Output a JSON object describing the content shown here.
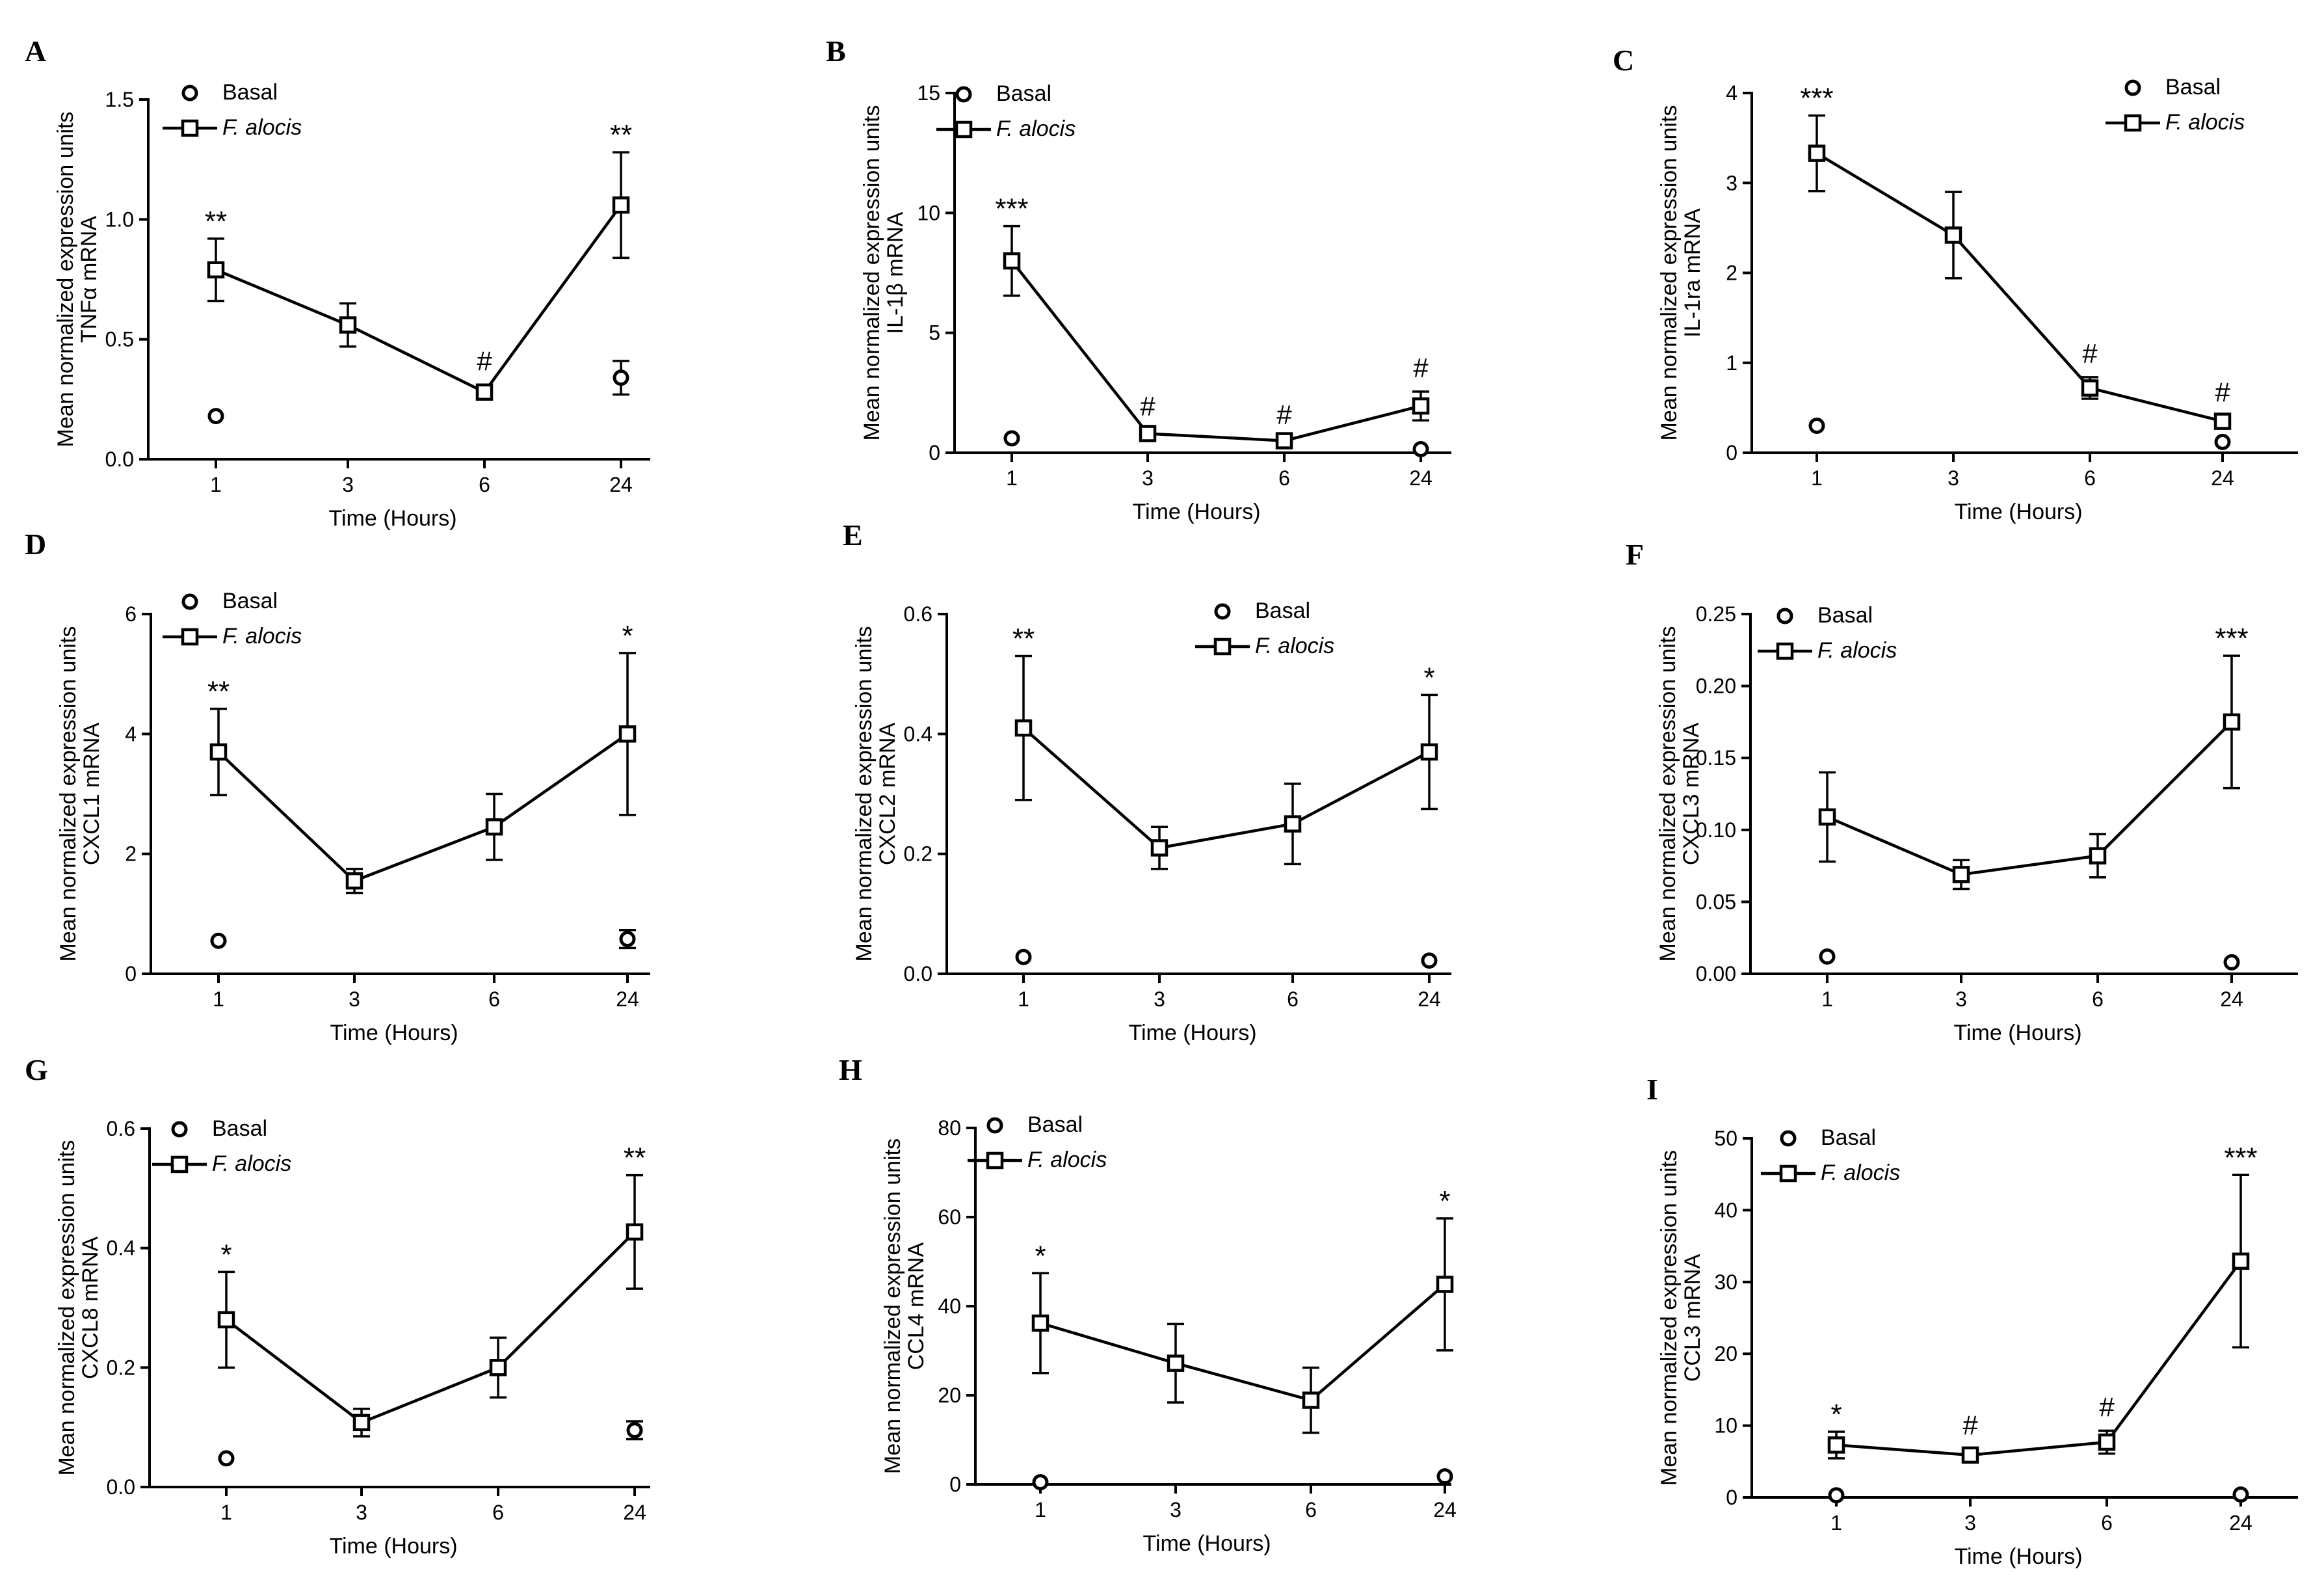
{
  "colors": {
    "ink": "#000000",
    "background": "#ffffff"
  },
  "chart_data": [
    {
      "panel": "A",
      "type": "line",
      "x": [
        "1",
        "3",
        "6",
        "24"
      ],
      "xlabel": "Time (Hours)",
      "ylabel": [
        "Mean normalized expression units",
        "TNFα mRNA"
      ],
      "ylim": [
        0,
        1.5
      ],
      "yticks": [
        "0.0",
        "0.5",
        "1.0",
        "1.5"
      ],
      "legend": [
        "Basal",
        "F. alocis"
      ],
      "legend_position": "top-left",
      "series": [
        {
          "name": "Basal",
          "marker": "circle",
          "values": [
            0.18,
            null,
            null,
            0.34
          ],
          "errors": [
            0,
            null,
            null,
            0.07
          ]
        },
        {
          "name": "F. alocis",
          "marker": "square",
          "line": true,
          "values": [
            0.79,
            0.56,
            0.28,
            1.06
          ],
          "errors": [
            0.13,
            0.09,
            0.03,
            0.22
          ]
        }
      ],
      "annotations": [
        "**",
        "",
        "#",
        "**"
      ]
    },
    {
      "panel": "B",
      "type": "line",
      "x": [
        "1",
        "3",
        "6",
        "24"
      ],
      "xlabel": "Time (Hours)",
      "ylabel": [
        "Mean normalized expression units",
        "IL-1β mRNA"
      ],
      "ylim": [
        0,
        15
      ],
      "yticks": [
        "0",
        "5",
        "10",
        "15"
      ],
      "legend": [
        "Basal",
        "F. alocis"
      ],
      "legend_position": "top-left",
      "series": [
        {
          "name": "Basal",
          "marker": "circle",
          "values": [
            0.6,
            null,
            null,
            0.15
          ],
          "errors": [
            0,
            null,
            null,
            0
          ]
        },
        {
          "name": "F. alocis",
          "marker": "square",
          "line": true,
          "values": [
            8.0,
            0.8,
            0.5,
            1.95
          ],
          "errors": [
            1.45,
            0.15,
            0.1,
            0.6
          ]
        }
      ],
      "annotations": [
        "***",
        "#",
        "#",
        "#"
      ]
    },
    {
      "panel": "C",
      "type": "line",
      "x": [
        "1",
        "3",
        "6",
        "24"
      ],
      "xlabel": "Time (Hours)",
      "ylabel": [
        "Mean normalized expression units",
        "IL-1ra mRNA"
      ],
      "ylim": [
        0,
        4
      ],
      "yticks": [
        "0",
        "1",
        "2",
        "3",
        "4"
      ],
      "legend": [
        "Basal",
        "F. alocis"
      ],
      "legend_position": "top-right",
      "series": [
        {
          "name": "Basal",
          "marker": "circle",
          "values": [
            0.3,
            null,
            null,
            0.12
          ],
          "errors": [
            0,
            null,
            null,
            0
          ]
        },
        {
          "name": "F. alocis",
          "marker": "square",
          "line": true,
          "values": [
            3.33,
            2.42,
            0.72,
            0.35
          ],
          "errors": [
            0.42,
            0.48,
            0.12,
            0.06
          ]
        }
      ],
      "annotations": [
        "***",
        "",
        "#",
        "#"
      ]
    },
    {
      "panel": "D",
      "type": "line",
      "x": [
        "1",
        "3",
        "6",
        "24"
      ],
      "xlabel": "Time (Hours)",
      "ylabel": [
        "Mean normalized expression units",
        "CXCL1 mRNA"
      ],
      "ylim": [
        0,
        6
      ],
      "yticks": [
        "0",
        "2",
        "4",
        "6"
      ],
      "legend": [
        "Basal",
        "F. alocis"
      ],
      "legend_position": "top-left",
      "series": [
        {
          "name": "Basal",
          "marker": "circle",
          "values": [
            0.55,
            null,
            null,
            0.58
          ],
          "errors": [
            0,
            null,
            null,
            0.15
          ]
        },
        {
          "name": "F. alocis",
          "marker": "square",
          "line": true,
          "values": [
            3.7,
            1.55,
            2.45,
            4.0
          ],
          "errors": [
            0.72,
            0.2,
            0.55,
            1.35
          ]
        }
      ],
      "annotations": [
        "**",
        "",
        "",
        "*"
      ]
    },
    {
      "panel": "E",
      "type": "line",
      "x": [
        "1",
        "3",
        "6",
        "24"
      ],
      "xlabel": "Time (Hours)",
      "ylabel": [
        "Mean normalized expression units",
        "CXCL2 mRNA"
      ],
      "ylim": [
        0,
        0.6
      ],
      "yticks": [
        "0.0",
        "0.2",
        "0.4",
        "0.6"
      ],
      "legend": [
        "Basal",
        "F. alocis"
      ],
      "legend_position": "top-right",
      "series": [
        {
          "name": "Basal",
          "marker": "circle",
          "values": [
            0.028,
            null,
            null,
            0.022
          ],
          "errors": [
            0,
            null,
            null,
            0
          ]
        },
        {
          "name": "F. alocis",
          "marker": "square",
          "line": true,
          "values": [
            0.41,
            0.21,
            0.25,
            0.37
          ],
          "errors": [
            0.12,
            0.035,
            0.067,
            0.095
          ]
        }
      ],
      "annotations": [
        "**",
        "",
        "",
        "*"
      ]
    },
    {
      "panel": "F",
      "type": "line",
      "x": [
        "1",
        "3",
        "6",
        "24"
      ],
      "xlabel": "Time (Hours)",
      "ylabel": [
        "Mean normalized expression units",
        "CXCL3 mRNA"
      ],
      "ylim": [
        0,
        0.25
      ],
      "yticks": [
        "0.00",
        "0.05",
        "0.10",
        "0.15",
        "0.20",
        "0.25"
      ],
      "legend": [
        "Basal",
        "F. alocis"
      ],
      "legend_position": "top-left",
      "series": [
        {
          "name": "Basal",
          "marker": "circle",
          "values": [
            0.012,
            null,
            null,
            0.008
          ],
          "errors": [
            0,
            null,
            null,
            0
          ]
        },
        {
          "name": "F. alocis",
          "marker": "square",
          "line": true,
          "values": [
            0.109,
            0.069,
            0.082,
            0.175
          ],
          "errors": [
            0.031,
            0.01,
            0.015,
            0.046
          ]
        }
      ],
      "annotations": [
        "",
        "",
        "",
        "***"
      ]
    },
    {
      "panel": "G",
      "type": "line",
      "x": [
        "1",
        "3",
        "6",
        "24"
      ],
      "xlabel": "Time (Hours)",
      "ylabel": [
        "Mean normalized expression units",
        "CXCL8 mRNA"
      ],
      "ylim": [
        0,
        0.6
      ],
      "yticks": [
        "0.0",
        "0.2",
        "0.4",
        "0.6"
      ],
      "legend": [
        "Basal",
        "F. alocis"
      ],
      "legend_position": "top-left",
      "series": [
        {
          "name": "Basal",
          "marker": "circle",
          "values": [
            0.048,
            null,
            null,
            0.095
          ],
          "errors": [
            0,
            null,
            null,
            0.015
          ]
        },
        {
          "name": "F. alocis",
          "marker": "square",
          "line": true,
          "values": [
            0.28,
            0.108,
            0.2,
            0.427
          ],
          "errors": [
            0.08,
            0.023,
            0.05,
            0.095
          ]
        }
      ],
      "annotations": [
        "*",
        "",
        "",
        "**"
      ]
    },
    {
      "panel": "H",
      "type": "line",
      "x": [
        "1",
        "3",
        "6",
        "24"
      ],
      "xlabel": "Time (Hours)",
      "ylabel": [
        "Mean normalized expression units",
        "CCL4 mRNA"
      ],
      "ylim": [
        0,
        80
      ],
      "yticks": [
        "0",
        "20",
        "40",
        "60",
        "80"
      ],
      "legend": [
        "Basal",
        "F. alocis"
      ],
      "legend_position": "top-left",
      "series": [
        {
          "name": "Basal",
          "marker": "circle",
          "values": [
            0.5,
            null,
            null,
            1.8
          ],
          "errors": [
            0,
            null,
            null,
            0
          ]
        },
        {
          "name": "F. alocis",
          "marker": "square",
          "line": true,
          "values": [
            36.2,
            27.2,
            18.9,
            44.9
          ],
          "errors": [
            11.2,
            8.8,
            7.3,
            14.8
          ]
        }
      ],
      "annotations": [
        "*",
        "",
        "",
        "*"
      ]
    },
    {
      "panel": "I",
      "type": "line",
      "x": [
        "1",
        "3",
        "6",
        "24"
      ],
      "xlabel": "Time (Hours)",
      "ylabel": [
        "Mean normalized expression units",
        "CCL3 mRNA"
      ],
      "ylim": [
        0,
        50
      ],
      "yticks": [
        "0",
        "10",
        "20",
        "30",
        "40",
        "50"
      ],
      "legend": [
        "Basal",
        "F. alocis"
      ],
      "legend_position": "top-left",
      "series": [
        {
          "name": "Basal",
          "marker": "circle",
          "values": [
            0.3,
            null,
            null,
            0.4
          ],
          "errors": [
            0,
            null,
            null,
            0
          ]
        },
        {
          "name": "F. alocis",
          "marker": "square",
          "line": true,
          "values": [
            7.3,
            5.9,
            7.7,
            32.9
          ],
          "errors": [
            1.85,
            0.85,
            1.6,
            12.0
          ]
        }
      ],
      "annotations": [
        "*",
        "#",
        "#",
        "***"
      ]
    }
  ]
}
